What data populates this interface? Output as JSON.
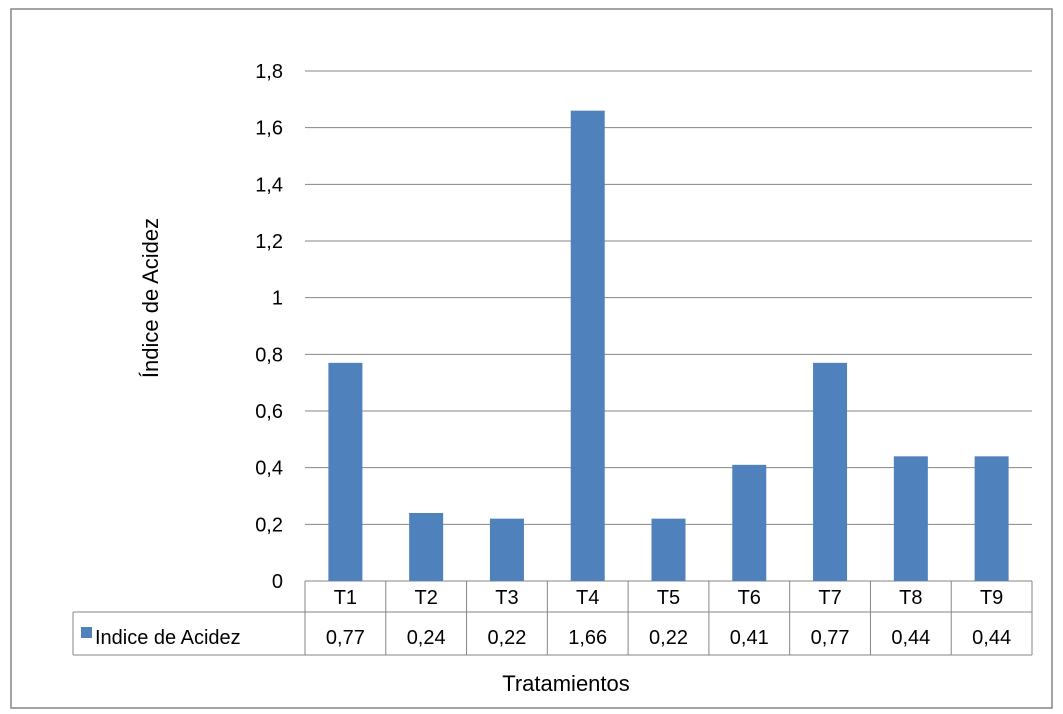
{
  "chart_data": {
    "type": "bar",
    "title": "",
    "xlabel": "Tratamientos",
    "ylabel": "Índice de Acidez",
    "categories": [
      "T1",
      "T2",
      "T3",
      "T4",
      "T5",
      "T6",
      "T7",
      "T8",
      "T9"
    ],
    "series": [
      {
        "name": "Indice de Acidez",
        "values": [
          0.77,
          0.24,
          0.22,
          1.66,
          0.22,
          0.41,
          0.77,
          0.44,
          0.44
        ],
        "value_labels": [
          "0,77",
          "0,24",
          "0,22",
          "1,66",
          "0,22",
          "0,41",
          "0,77",
          "0,44",
          "0,44"
        ],
        "color": "#4F81BD"
      }
    ],
    "ylim": [
      0,
      1.8
    ],
    "yticks": [
      0,
      0.2,
      0.4,
      0.6,
      0.8,
      1,
      1.2,
      1.4,
      1.6,
      1.8
    ],
    "ytick_labels": [
      "0",
      "0,2",
      "0,4",
      "0,6",
      "0,8",
      "1",
      "1,2",
      "1,4",
      "1,6",
      "1,8"
    ],
    "grid": true,
    "legend": "data-table-left",
    "data_table": true,
    "colors": {
      "bar": "#4F81BD",
      "grid": "#868686",
      "border": "#868686"
    }
  }
}
